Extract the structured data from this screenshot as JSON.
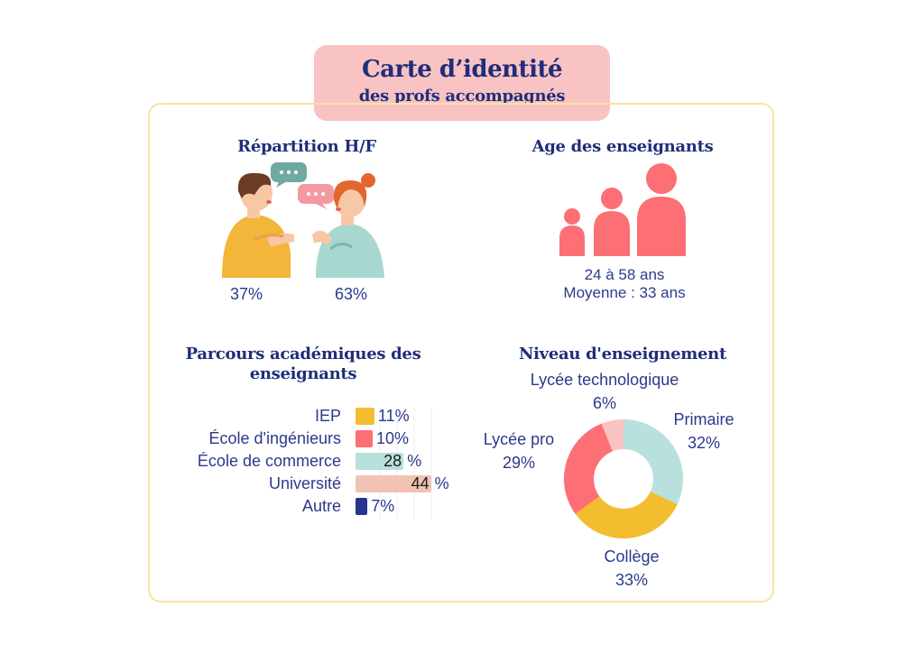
{
  "title": {
    "line1": "Carte d’identité",
    "line2": "des profs accompagnés"
  },
  "gender": {
    "heading": "Répartition H/F",
    "male_pct": "37%",
    "female_pct": "63%"
  },
  "age": {
    "heading": "Age des enseignants",
    "range": "24 à 58 ans",
    "average": "Moyenne : 33 ans"
  },
  "chart_data": [
    {
      "type": "bar",
      "title": "Parcours académiques des enseignants",
      "categories": [
        "IEP",
        "École d'ingénieurs",
        "École de commerce",
        "Université",
        "Autre"
      ],
      "values": [
        11,
        10,
        28,
        44,
        7
      ],
      "value_labels": [
        "11%",
        "10%",
        "28",
        "44",
        "7%"
      ],
      "unit_labels": [
        "",
        "",
        "%",
        "%",
        ""
      ],
      "colors": [
        "#f3bd2f",
        "#fc6f74",
        "#b8e0dc",
        "#f2c3b3",
        "#27358f"
      ],
      "orientation": "horizontal",
      "grid": true
    },
    {
      "type": "pie",
      "title": "Niveau d'enseignement",
      "labels": [
        "Primaire",
        "Collège",
        "Lycée pro",
        "Lycée technologique"
      ],
      "values": [
        32,
        33,
        29,
        6
      ],
      "value_labels": [
        "32%",
        "33%",
        "29%",
        "6%"
      ],
      "colors": [
        "#b8e0dc",
        "#f3bd2f",
        "#fc6f74",
        "#f9c2c3"
      ],
      "donut": true
    }
  ]
}
